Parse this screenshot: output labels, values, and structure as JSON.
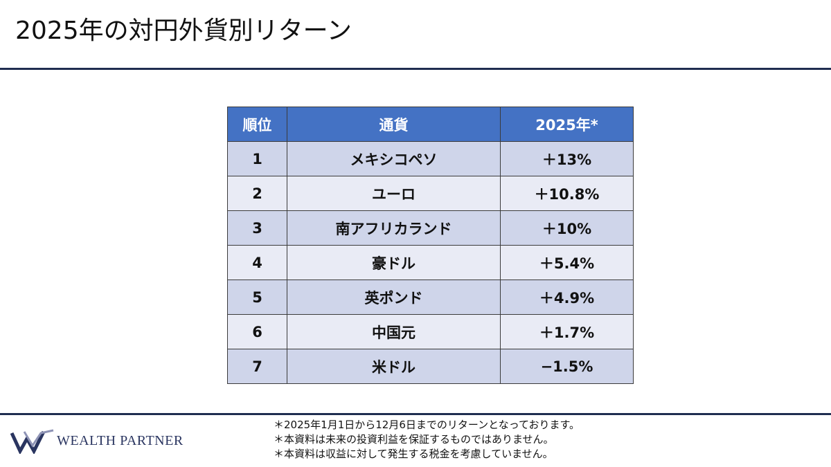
{
  "header": {
    "title": "2025年の対円外貨別リターン"
  },
  "table": {
    "columns": [
      "順位",
      "通貨",
      "2025年*"
    ],
    "rows": [
      [
        "1",
        "メキシコペソ",
        "＋13%"
      ],
      [
        "2",
        "ユーロ",
        "＋10.8%"
      ],
      [
        "3",
        "南アフリカランド",
        "＋10%"
      ],
      [
        "4",
        "豪ドル",
        "＋5.4%"
      ],
      [
        "5",
        "英ポンド",
        "＋4.9%"
      ],
      [
        "6",
        "中国元",
        "＋1.7%"
      ],
      [
        "7",
        "米ドル",
        "−1.5%"
      ]
    ]
  },
  "footer": {
    "logo": "WEALTH PARTNER",
    "notes": [
      "＊2025年1月1日から12月6日までのリターンとなっております。",
      "＊本資料は未来の投資利益を保証するものではありません。",
      "＊本資料は収益に対して発生する税金を考慮していません。"
    ]
  }
}
